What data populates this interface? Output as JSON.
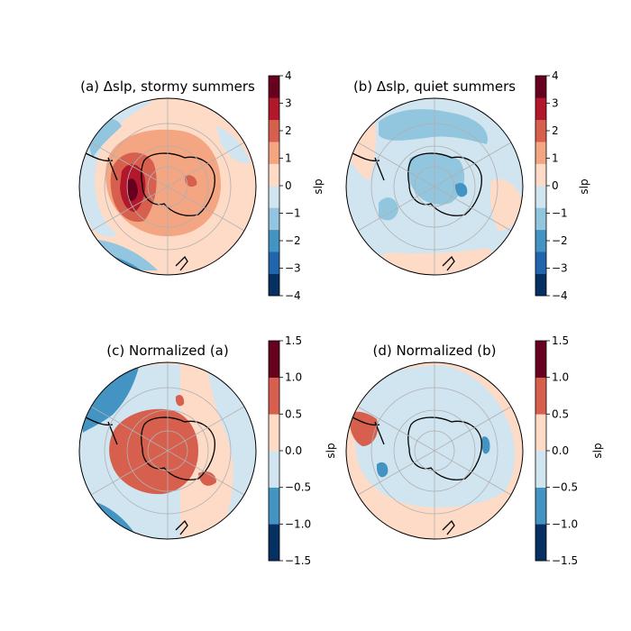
{
  "chart_data": [
    {
      "type": "heatmap",
      "projection": "south-polar-stereographic",
      "title": "(a) Δslp, stormy summers",
      "colorbar_label": "slp",
      "colormap": "RdBu_r",
      "levels": [
        -4,
        -3,
        -2,
        -1,
        0,
        1,
        2,
        3,
        4
      ],
      "tick_labels": [
        "−4",
        "−3",
        "−2",
        "−1",
        "0",
        "1",
        "2",
        "3",
        "4"
      ],
      "colors": [
        "#053061",
        "#2166ac",
        "#4393c3",
        "#92c5de",
        "#d1e5f0",
        "#fddbc7",
        "#f4a582",
        "#d6604d",
        "#b2182b",
        "#67001f"
      ],
      "grid": true,
      "fields": [
        {
          "region": "ocean_background",
          "value": 0.5
        },
        {
          "region": "west_antarctic_pacific_sector",
          "value": 3.2
        },
        {
          "region": "east_antarctica_interior",
          "value": 1.5
        },
        {
          "region": "south_america_pacific_coast",
          "value": -1.3
        },
        {
          "region": "south_pacific_midlatitudes",
          "value": -2.2
        },
        {
          "region": "indian_ocean_sector",
          "value": -0.6
        }
      ]
    },
    {
      "type": "heatmap",
      "projection": "south-polar-stereographic",
      "title": "(b) Δslp, quiet summers",
      "colorbar_label": "slp",
      "colormap": "RdBu_r",
      "levels": [
        -4,
        -3,
        -2,
        -1,
        0,
        1,
        2,
        3,
        4
      ],
      "tick_labels": [
        "−4",
        "−3",
        "−2",
        "−1",
        "0",
        "1",
        "2",
        "3",
        "4"
      ],
      "colors": [
        "#053061",
        "#2166ac",
        "#4393c3",
        "#92c5de",
        "#d1e5f0",
        "#fddbc7",
        "#f4a582",
        "#d6604d",
        "#b2182b",
        "#67001f"
      ],
      "grid": true,
      "fields": [
        {
          "region": "ocean_background",
          "value": -0.5
        },
        {
          "region": "antarctica_interior",
          "value": -1.2
        },
        {
          "region": "south_america_region",
          "value": 0.7
        },
        {
          "region": "indian_ocean_sector",
          "value": 0.8
        },
        {
          "region": "southern_ocean_ring",
          "value": -1.3
        }
      ]
    },
    {
      "type": "heatmap",
      "projection": "south-polar-stereographic",
      "title": "(c) Normalized (a)",
      "colorbar_label": "slp",
      "colormap": "RdBu_r",
      "levels": [
        -1.5,
        -1.0,
        -0.5,
        0.0,
        0.5,
        1.0,
        1.5
      ],
      "tick_labels": [
        "−1.5",
        "−1.0",
        "−0.5",
        "0.0",
        "0.5",
        "1.0",
        "1.5"
      ],
      "colors": [
        "#053061",
        "#4393c3",
        "#d1e5f0",
        "#fddbc7",
        "#d6604d",
        "#67001f"
      ],
      "grid": true,
      "fields": [
        {
          "region": "ocean_background",
          "value": 0.25
        },
        {
          "region": "west_antarctic_pacific_sector",
          "value": 0.75
        },
        {
          "region": "south_america_pacific_coast",
          "value": -0.75
        },
        {
          "region": "south_pacific_midlatitudes",
          "value": -1.25
        },
        {
          "region": "indian_ocean_sector",
          "value": -0.25
        }
      ]
    },
    {
      "type": "heatmap",
      "projection": "south-polar-stereographic",
      "title": "(d) Normalized (b)",
      "colorbar_label": "slp",
      "colormap": "RdBu_r",
      "levels": [
        -1.5,
        -1.0,
        -0.5,
        0.0,
        0.5,
        1.0,
        1.5
      ],
      "tick_labels": [
        "−1.5",
        "−1.0",
        "−0.5",
        "0.0",
        "0.5",
        "1.0",
        "1.5"
      ],
      "colors": [
        "#053061",
        "#4393c3",
        "#d1e5f0",
        "#fddbc7",
        "#d6604d",
        "#67001f"
      ],
      "grid": true,
      "fields": [
        {
          "region": "ocean_background",
          "value": -0.25
        },
        {
          "region": "outer_ring",
          "value": 0.25
        },
        {
          "region": "south_america_region",
          "value": 0.75
        },
        {
          "region": "indian_ocean_sector",
          "value": -0.75
        },
        {
          "region": "pacific_sector",
          "value": -0.75
        }
      ]
    }
  ]
}
